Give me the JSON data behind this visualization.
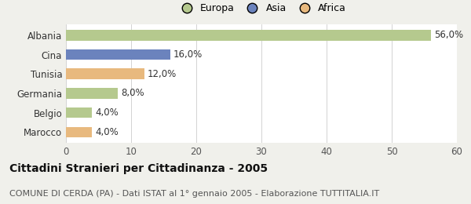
{
  "categories": [
    "Albania",
    "Cina",
    "Tunisia",
    "Germania",
    "Belgio",
    "Marocco"
  ],
  "values": [
    56.0,
    16.0,
    12.0,
    8.0,
    4.0,
    4.0
  ],
  "labels": [
    "56,0%",
    "16,0%",
    "12,0%",
    "8,0%",
    "4,0%",
    "4,0%"
  ],
  "colors": [
    "#b5c98e",
    "#6b83bd",
    "#e8b97e",
    "#b5c98e",
    "#b5c98e",
    "#e8b97e"
  ],
  "legend": [
    {
      "label": "Europa",
      "color": "#b5c98e"
    },
    {
      "label": "Asia",
      "color": "#6b83bd"
    },
    {
      "label": "Africa",
      "color": "#e8b97e"
    }
  ],
  "xlim": [
    0,
    60
  ],
  "xticks": [
    0,
    10,
    20,
    30,
    40,
    50,
    60
  ],
  "title": "Cittadini Stranieri per Cittadinanza - 2005",
  "subtitle": "COMUNE DI CERDA (PA) - Dati ISTAT al 1° gennaio 2005 - Elaborazione TUTTITALIA.IT",
  "background_color": "#f0f0eb",
  "bar_background": "#ffffff",
  "title_fontsize": 10,
  "subtitle_fontsize": 8,
  "label_fontsize": 8.5,
  "tick_fontsize": 8.5,
  "legend_fontsize": 9
}
